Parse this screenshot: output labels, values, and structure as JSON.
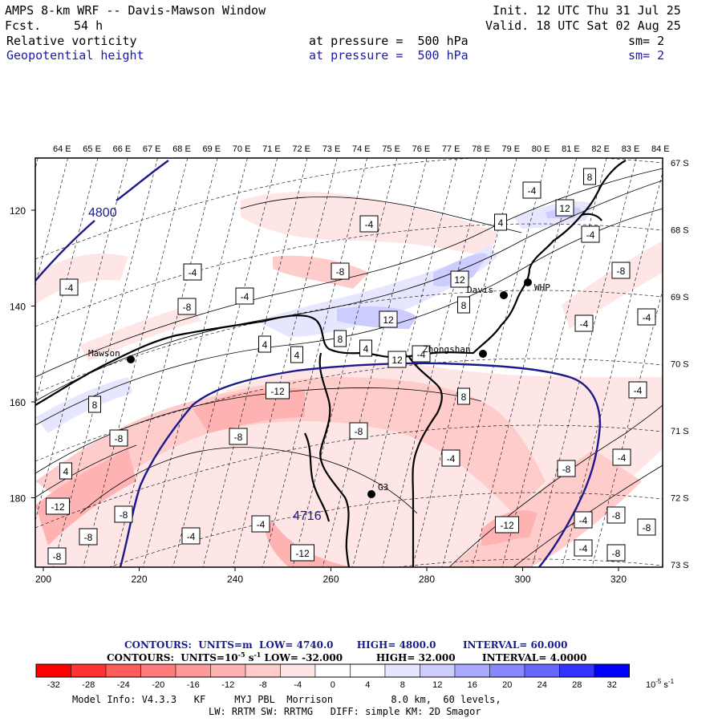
{
  "header": {
    "title": "AMPS 8-km WRF -- Davis-Mawson Window",
    "fcst_label": "Fcst.",
    "fcst_value": "54 h",
    "init": "Init. 12 UTC Thu 31 Jul 25",
    "valid": "Valid. 18 UTC Sat 02 Aug 25",
    "field1": {
      "name": "Relative vorticity",
      "level": "at pressure =  500 hPa",
      "smooth": "sm= 2"
    },
    "field2": {
      "name": "Geopotential height",
      "level": "at pressure =  500 hPa",
      "smooth": "sm= 2"
    }
  },
  "map": {
    "lon_labels": [
      "64 E",
      "65 E",
      "66 E",
      "67 E",
      "68 E",
      "69 E",
      "70 E",
      "71 E",
      "72 E",
      "73 E",
      "74 E",
      "75 E",
      "76 E",
      "77 E",
      "78 E",
      "79 E",
      "80 E",
      "81 E",
      "82 E",
      "83 E",
      "84 E"
    ],
    "lat_labels": [
      "67 S",
      "68 S",
      "69 S",
      "70 S",
      "71 S",
      "72 S",
      "73 S"
    ],
    "x_ticks": [
      "200",
      "220",
      "240",
      "260",
      "280",
      "300",
      "320"
    ],
    "y_ticks": [
      "120",
      "140",
      "160",
      "180"
    ],
    "stations": [
      {
        "name": "Mawson",
        "id": "station-mawson"
      },
      {
        "name": "Davis",
        "id": "station-davis"
      },
      {
        "name": "WHP",
        "id": "station-whp"
      },
      {
        "name": "Zhongshan",
        "id": "station-zhongshan"
      },
      {
        "name": "G3",
        "id": "station-g3"
      }
    ],
    "height_labels": [
      "4800",
      "4716"
    ],
    "contour_labels": [
      "-4",
      "-4",
      "-4",
      "-4",
      "-4",
      "-4",
      "-4",
      "-4",
      "-4",
      "-4",
      "-4",
      "-4",
      "-4",
      "-4",
      "-4",
      "-4",
      "4",
      "4",
      "4",
      "4",
      "4",
      "-8",
      "-8",
      "-8",
      "-8",
      "-8",
      "-8",
      "-8",
      "-8",
      "-8",
      "-8",
      "-8",
      "-8",
      "-8",
      "8",
      "8",
      "8",
      "8",
      "8",
      "-12",
      "-12",
      "-12",
      "-12",
      "12",
      "12",
      "12",
      "12"
    ]
  },
  "footer": {
    "contour1": {
      "prefix": "CONTOURS:  UNITS=m  LOW=",
      "low": "4740.0",
      "high_label": "HIGH=",
      "high": "4800.0",
      "interval_label": "INTERVAL=",
      "interval": "60.000"
    },
    "contour2": {
      "prefix": "CONTOURS:  UNITS=10",
      "exp": "-5",
      "unit_tail": " s",
      "unit_exp": "-1",
      "low_label": " LOW=",
      "low": "-32.000",
      "high_label": "HIGH=",
      "high": "32.000",
      "interval_label": "INTERVAL=",
      "interval": "4.0000"
    },
    "colorbar_labels": [
      "-32",
      "-28",
      "-24",
      "-20",
      "-16",
      "-12",
      "-8",
      "-4",
      "0",
      "4",
      "8",
      "12",
      "16",
      "20",
      "24",
      "28",
      "32"
    ],
    "colorbar_units": "10",
    "colorbar_units_exp": "-5",
    "colorbar_units_tail": " s",
    "colorbar_units_tail_exp": "-1",
    "colorbar_colors": [
      "#ff0000",
      "#ff3333",
      "#ff5c5c",
      "#ff7a7a",
      "#ff9999",
      "#ffb2b2",
      "#ffcccc",
      "#ffe6e6",
      "#ffffff",
      "#ffffff",
      "#e6e6ff",
      "#ccccff",
      "#aaaaff",
      "#8888ff",
      "#6666ff",
      "#3333ff",
      "#0000ff"
    ],
    "model_info": "Model Info: V4.3.3   KF     MYJ PBL  Morrison          8.0 km,  60 levels,",
    "model_info2": "LW: RRTM SW: RRTMG   DIFF: simple KM: 2D Smagor"
  }
}
